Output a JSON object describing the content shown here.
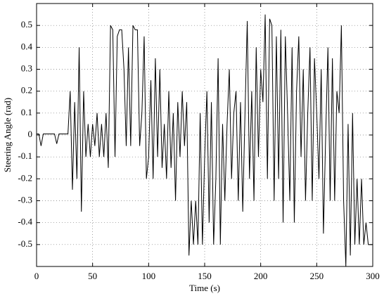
{
  "chart_data": {
    "type": "line",
    "xlabel": "Time (s)",
    "ylabel": "Steering Angle (rad)",
    "xlim": [
      0,
      300
    ],
    "xticks": [
      0,
      50,
      100,
      150,
      200,
      250,
      300
    ],
    "ylim": [
      -0.6,
      0.6
    ],
    "yticks": [
      -0.5,
      -0.4,
      -0.3,
      -0.2,
      -0.1,
      0,
      0.1,
      0.2,
      0.3,
      0.4,
      0.5
    ],
    "grid": true,
    "x": [
      0,
      2,
      4,
      6,
      8,
      10,
      12,
      14,
      16,
      18,
      20,
      22,
      24,
      26,
      28,
      30,
      32,
      34,
      36,
      38,
      40,
      42,
      44,
      46,
      48,
      50,
      52,
      54,
      56,
      58,
      60,
      62,
      64,
      66,
      68,
      70,
      72,
      74,
      76,
      78,
      80,
      82,
      84,
      86,
      88,
      90,
      92,
      94,
      96,
      98,
      100,
      102,
      104,
      106,
      108,
      110,
      112,
      114,
      116,
      118,
      120,
      122,
      124,
      126,
      128,
      130,
      132,
      134,
      136,
      138,
      140,
      142,
      144,
      146,
      148,
      150,
      152,
      154,
      156,
      158,
      160,
      162,
      164,
      166,
      168,
      170,
      172,
      174,
      176,
      178,
      180,
      182,
      184,
      186,
      188,
      190,
      192,
      194,
      196,
      198,
      200,
      202,
      204,
      206,
      208,
      210,
      212,
      214,
      216,
      218,
      220,
      222,
      224,
      226,
      228,
      230,
      232,
      234,
      236,
      238,
      240,
      242,
      244,
      246,
      248,
      250,
      252,
      254,
      256,
      258,
      260,
      262,
      264,
      266,
      268,
      270,
      272,
      274,
      276,
      278,
      280,
      282,
      284,
      286,
      288,
      290,
      292,
      294,
      296,
      298,
      300
    ],
    "series": [
      {
        "name": "Steering angle",
        "color": "#000000",
        "values": [
          0.005,
          0.005,
          -0.05,
          0.005,
          0.005,
          0.005,
          0.005,
          0.005,
          0.005,
          -0.04,
          0.005,
          0.005,
          0.005,
          0.005,
          0.005,
          0.2,
          -0.25,
          0.15,
          -0.2,
          0.4,
          -0.35,
          0.2,
          -0.1,
          0.05,
          -0.1,
          0.05,
          -0.05,
          0.1,
          -0.1,
          0.05,
          -0.1,
          0.1,
          -0.15,
          0.5,
          0.48,
          -0.1,
          0.45,
          0.48,
          0.48,
          0.3,
          -0.05,
          0.4,
          -0.05,
          0.5,
          0.48,
          0.48,
          -0.05,
          0.1,
          0.45,
          -0.2,
          -0.1,
          0.25,
          -0.2,
          0.35,
          -0.1,
          0.3,
          -0.15,
          0.05,
          -0.2,
          0.2,
          -0.15,
          0.1,
          -0.3,
          0.15,
          -0.1,
          0.2,
          -0.05,
          0.15,
          -0.55,
          -0.3,
          -0.5,
          -0.3,
          -0.5,
          0.1,
          -0.5,
          -0.1,
          0.2,
          -0.4,
          0.15,
          -0.5,
          -0.2,
          0.35,
          -0.5,
          0.05,
          -0.3,
          0.05,
          0.3,
          -0.2,
          0.1,
          0.2,
          -0.3,
          0.15,
          -0.35,
          0.1,
          0.52,
          -0.2,
          0.2,
          -0.3,
          0.4,
          -0.1,
          0.3,
          0.15,
          0.55,
          -0.2,
          0.53,
          0.5,
          -0.3,
          0.45,
          -0.2,
          0.48,
          -0.4,
          0.45,
          0.1,
          -0.3,
          0.4,
          -0.4,
          0.2,
          0.45,
          -0.1,
          0.3,
          -0.3,
          0.1,
          0.4,
          -0.3,
          0.35,
          0.1,
          -0.2,
          0.3,
          -0.45,
          0.0,
          0.4,
          -0.3,
          0.35,
          -0.3,
          0.2,
          0.1,
          0.5,
          -0.3,
          -0.6,
          0.05,
          -0.55,
          0.1,
          -0.5,
          -0.2,
          -0.5,
          -0.2,
          -0.5,
          -0.4,
          -0.5,
          -0.5,
          -0.5
        ]
      }
    ]
  }
}
